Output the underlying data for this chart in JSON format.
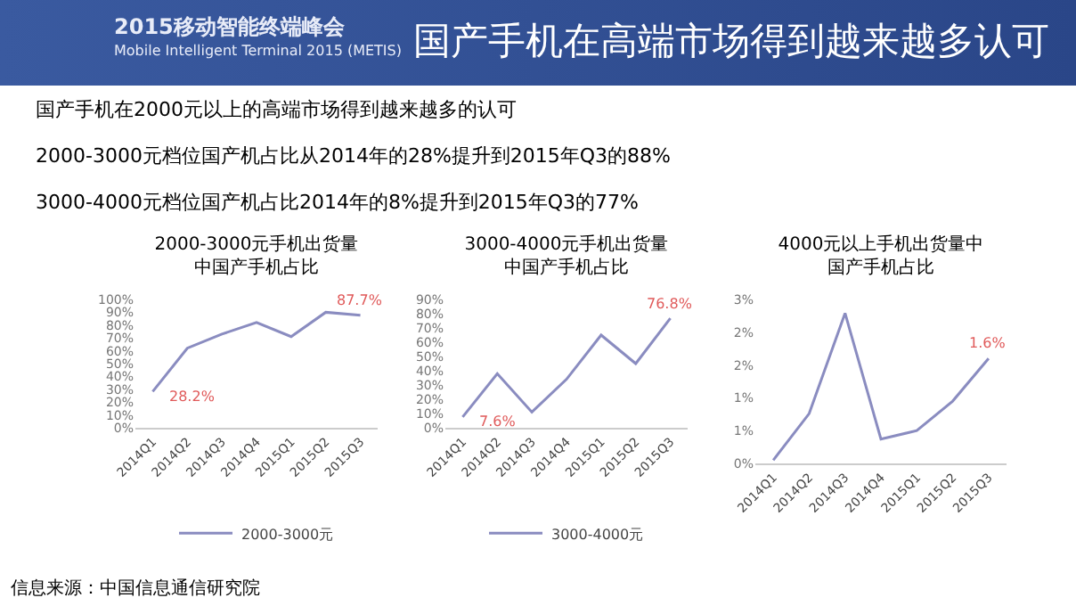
{
  "chart_data": [
    {
      "type": "other",
      "title": "国产手机在高端市场得到越来越多认可",
      "annotations": [
        "2015移动智能终端峰会\nMobile Intelligent Terminal 2015 (METIS)",
        "国产手机在2000元以上的高端市场得到越来越多的认可",
        "2000-3000元档位国产机占比从2014年的28%提升到2015年Q3的88%",
        "3000-4000元档位国产机占比2014年的8%提升到2015年Q3的77%",
        "信息来源：中国信息通信研究院"
      ]
    },
    {
      "type": "line",
      "title": "2000-3000元手机出货量中国产手机占比",
      "categories": [
        "2014Q1",
        "2014Q2",
        "2014Q3",
        "2014Q4",
        "2015Q1",
        "2015Q2",
        "2015Q3"
      ],
      "series": [
        {
          "name": "2000-3000元",
          "color": "#8a8cc0",
          "values": [
            28.2,
            62,
            73,
            82,
            71,
            90,
            87.7
          ],
          "value_labels": [
            "28.2%",
            null,
            null,
            null,
            null,
            null,
            "87.7%"
          ]
        }
      ],
      "ylim": [
        0,
        100
      ],
      "yticks": [
        {
          "value": 0,
          "label": "0%"
        },
        {
          "value": 10,
          "label": "10%"
        },
        {
          "value": 20,
          "label": "20%"
        },
        {
          "value": 30,
          "label": "30%"
        },
        {
          "value": 40,
          "label": "40%"
        },
        {
          "value": 50,
          "label": "50%"
        },
        {
          "value": 60,
          "label": "60%"
        },
        {
          "value": 70,
          "label": "70%"
        },
        {
          "value": 80,
          "label": "80%"
        },
        {
          "value": 90,
          "label": "90%"
        },
        {
          "value": 100,
          "label": "100%"
        }
      ],
      "legend": "bottom",
      "marker": "none"
    },
    {
      "type": "line",
      "title": "3000-4000元手机出货量中国产手机占比",
      "categories": [
        "2014Q1",
        "2014Q2",
        "2014Q3",
        "2014Q4",
        "2015Q1",
        "2015Q2",
        "2015Q3"
      ],
      "series": [
        {
          "name": "3000-4000元",
          "color": "#8a8cc0",
          "values": [
            7.6,
            38,
            11,
            34,
            65,
            45,
            76.8
          ],
          "value_labels": [
            "7.6%",
            null,
            null,
            null,
            null,
            null,
            "76.8%"
          ]
        }
      ],
      "ylim": [
        0,
        90
      ],
      "yticks": [
        {
          "value": 0,
          "label": "0%"
        },
        {
          "value": 10,
          "label": "10%"
        },
        {
          "value": 20,
          "label": "20%"
        },
        {
          "value": 30,
          "label": "30%"
        },
        {
          "value": 40,
          "label": "40%"
        },
        {
          "value": 50,
          "label": "50%"
        },
        {
          "value": 60,
          "label": "60%"
        },
        {
          "value": 70,
          "label": "70%"
        },
        {
          "value": 80,
          "label": "80%"
        },
        {
          "value": 90,
          "label": "90%"
        }
      ],
      "legend": "bottom",
      "marker": "none"
    },
    {
      "type": "line",
      "title": "4000元以上手机出货量中国产手机占比",
      "categories": [
        "2014Q1",
        "2014Q2",
        "2014Q3",
        "2014Q4",
        "2015Q1",
        "2015Q2",
        "2015Q3"
      ],
      "series": [
        {
          "color": "#8a8cc0",
          "values": [
            0.05,
            0.76,
            2.29,
            0.37,
            0.5,
            0.95,
            1.6
          ],
          "value_labels": [
            null,
            null,
            null,
            null,
            null,
            null,
            "1.6%"
          ]
        }
      ],
      "ylim": [
        0,
        2.5
      ],
      "yticks": [
        {
          "value": 0,
          "label": "0%"
        },
        {
          "value": 0.5,
          "label": "1%"
        },
        {
          "value": 1,
          "label": "1%"
        },
        {
          "value": 1.5,
          "label": "2%"
        },
        {
          "value": 2,
          "label": "2%"
        },
        {
          "value": 2.5,
          "label": "3%"
        }
      ],
      "marker": "none"
    }
  ]
}
